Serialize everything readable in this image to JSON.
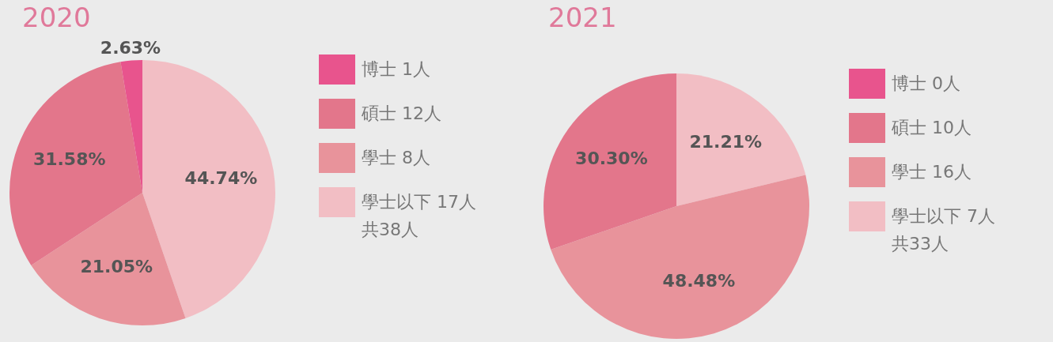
{
  "chart_data": [
    {
      "type": "pie",
      "title": "2020",
      "categories": [
        "博士 1人",
        "碩士 12人",
        "學士 8人",
        "學士以下 17人"
      ],
      "values": [
        2.63,
        31.58,
        21.05,
        44.74
      ],
      "value_labels": [
        "2.63%",
        "31.58%",
        "21.05%",
        "44.74%"
      ],
      "colors": [
        "#e8548d",
        "#e3768b",
        "#e8939b",
        "#f2bec4"
      ],
      "legend": "right",
      "annotations": [
        "共38人"
      ]
    },
    {
      "type": "pie",
      "title": "2021",
      "categories": [
        "博士 0人",
        "碩士 10人",
        "學士 16人",
        "學士以下 7人"
      ],
      "values": [
        0,
        30.3,
        48.48,
        21.21
      ],
      "value_labels": [
        null,
        "30.30%",
        "48.48%",
        "21.21%"
      ],
      "colors": [
        "#e8548d",
        "#e3768b",
        "#e8939b",
        "#f2bec4"
      ],
      "legend": "right",
      "annotations": [
        "共33人"
      ]
    }
  ]
}
